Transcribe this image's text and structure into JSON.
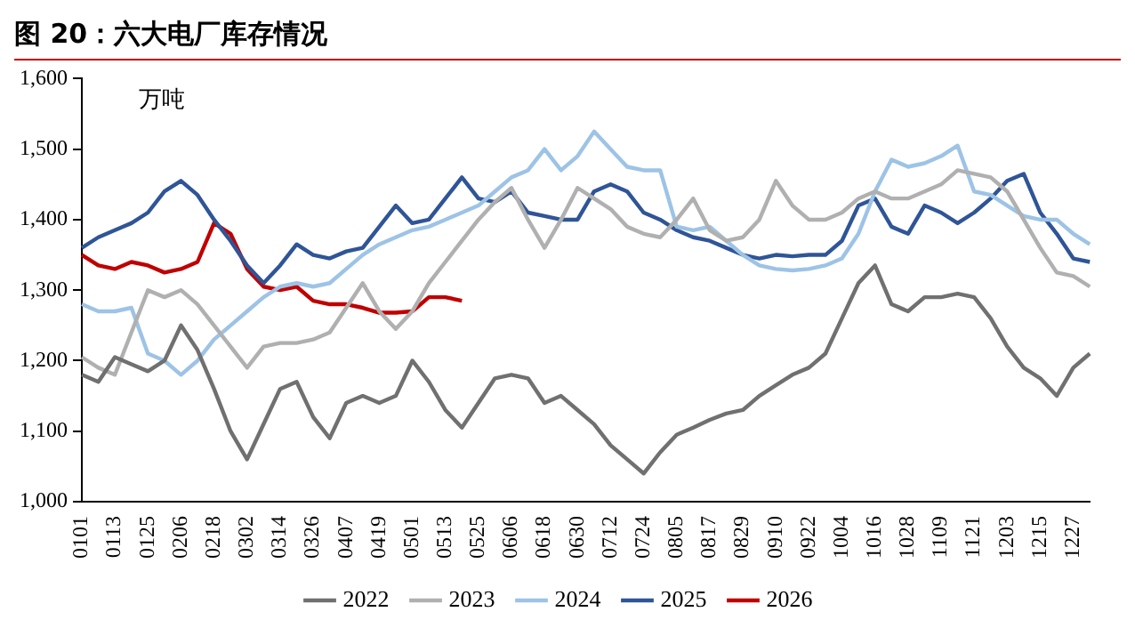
{
  "chart_data": {
    "type": "line",
    "title": "图 20：六大电厂库存情况",
    "annotations": [
      "万吨"
    ],
    "categories": [
      "0101",
      null,
      "0113",
      null,
      "0125",
      null,
      "0206",
      null,
      "0218",
      null,
      "0302",
      null,
      "0314",
      null,
      "0326",
      null,
      "0407",
      null,
      "0419",
      null,
      "0501",
      null,
      "0513",
      null,
      "0525",
      null,
      "0606",
      null,
      "0618",
      null,
      "0630",
      null,
      "0712",
      null,
      "0724",
      null,
      "0805",
      null,
      "0817",
      null,
      "0829",
      null,
      "0910",
      null,
      "0922",
      null,
      "1004",
      null,
      "1016",
      null,
      "1028",
      null,
      "1109",
      null,
      "1121",
      null,
      "1203",
      null,
      "1215",
      null,
      "1227",
      null
    ],
    "series": [
      {
        "name": "2022",
        "color": "#707070",
        "values": [
          1180,
          1170,
          1205,
          1195,
          1185,
          1200,
          1250,
          1215,
          1160,
          1100,
          1060,
          1110,
          1160,
          1170,
          1120,
          1090,
          1140,
          1150,
          1140,
          1150,
          1200,
          1170,
          1130,
          1105,
          1140,
          1175,
          1180,
          1175,
          1140,
          1150,
          1130,
          1110,
          1080,
          1060,
          1040,
          1070,
          1095,
          1105,
          1116,
          1125,
          1130,
          1150,
          1165,
          1180,
          1190,
          1210,
          1260,
          1310,
          1335,
          1280,
          1270,
          1290,
          1290,
          1295,
          1290,
          1260,
          1220,
          1190,
          1175,
          1150,
          1190,
          1210
        ]
      },
      {
        "name": "2023",
        "color": "#b0b0b0",
        "values": [
          1205,
          1190,
          1180,
          1240,
          1300,
          1290,
          1300,
          1280,
          1250,
          1220,
          1190,
          1220,
          1225,
          1225,
          1230,
          1240,
          1275,
          1310,
          1270,
          1245,
          1270,
          1310,
          1340,
          1370,
          1400,
          1425,
          1445,
          1400,
          1360,
          1400,
          1445,
          1430,
          1415,
          1390,
          1380,
          1375,
          1400,
          1430,
          1385,
          1370,
          1375,
          1400,
          1455,
          1420,
          1400,
          1400,
          1410,
          1430,
          1440,
          1430,
          1430,
          1440,
          1450,
          1470,
          1465,
          1460,
          1440,
          1400,
          1360,
          1325,
          1320,
          1305
        ]
      },
      {
        "name": "2024",
        "color": "#9dc3e6",
        "values": [
          1280,
          1270,
          1270,
          1275,
          1210,
          1200,
          1180,
          1200,
          1230,
          1250,
          1270,
          1290,
          1305,
          1310,
          1305,
          1310,
          1330,
          1350,
          1365,
          1375,
          1385,
          1390,
          1400,
          1410,
          1420,
          1440,
          1460,
          1470,
          1500,
          1470,
          1490,
          1525,
          1500,
          1475,
          1470,
          1470,
          1390,
          1385,
          1390,
          1370,
          1350,
          1335,
          1330,
          1328,
          1330,
          1335,
          1345,
          1380,
          1440,
          1485,
          1475,
          1480,
          1490,
          1505,
          1440,
          1435,
          1420,
          1405,
          1400,
          1400,
          1380,
          1365
        ]
      },
      {
        "name": "2025",
        "color": "#2f5597",
        "values": [
          1360,
          1375,
          1385,
          1395,
          1410,
          1440,
          1455,
          1435,
          1400,
          1370,
          1335,
          1310,
          1335,
          1365,
          1350,
          1345,
          1355,
          1360,
          1390,
          1420,
          1395,
          1400,
          1430,
          1460,
          1430,
          1425,
          1440,
          1410,
          1405,
          1400,
          1400,
          1440,
          1450,
          1440,
          1410,
          1400,
          1385,
          1375,
          1370,
          1360,
          1350,
          1345,
          1350,
          1348,
          1350,
          1350,
          1370,
          1420,
          1430,
          1390,
          1380,
          1420,
          1410,
          1395,
          1410,
          1430,
          1455,
          1465,
          1410,
          1380,
          1345,
          1340
        ]
      },
      {
        "name": "2026",
        "color": "#c00000",
        "values": [
          1350,
          1335,
          1330,
          1340,
          1335,
          1325,
          1330,
          1340,
          1395,
          1380,
          1330,
          1305,
          1300,
          1305,
          1285,
          1280,
          1280,
          1275,
          1268,
          1268,
          1270,
          1290,
          1290,
          1285,
          null,
          null,
          null,
          null,
          null,
          null,
          null,
          null,
          null,
          null,
          null,
          null,
          null,
          null,
          null,
          null,
          null,
          null,
          null,
          null,
          null,
          null,
          null,
          null,
          null,
          null,
          null,
          null,
          null,
          null,
          null,
          null,
          null,
          null,
          null,
          null,
          null,
          null
        ]
      }
    ],
    "ylim": [
      1000,
      1600
    ],
    "yticks": [
      {
        "value": 1000,
        "label": "1,000"
      },
      {
        "value": 1100,
        "label": "1,100"
      },
      {
        "value": 1200,
        "label": "1,200"
      },
      {
        "value": 1300,
        "label": "1,300"
      },
      {
        "value": 1400,
        "label": "1,400"
      },
      {
        "value": 1500,
        "label": "1,500"
      },
      {
        "value": 1600,
        "label": "1,600"
      }
    ],
    "grid": false,
    "legend": "bottom"
  }
}
